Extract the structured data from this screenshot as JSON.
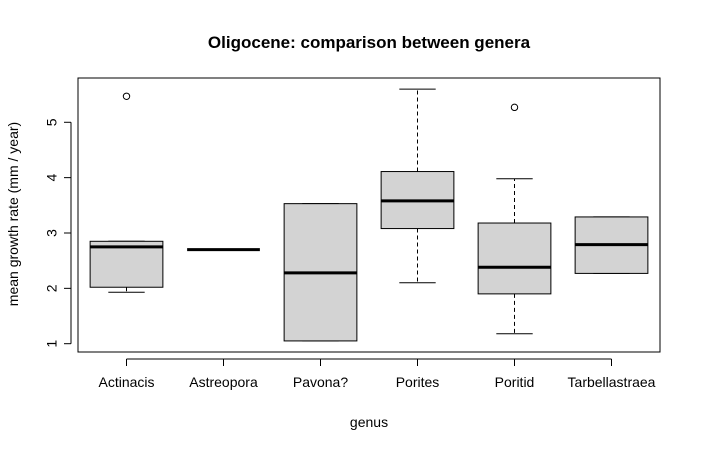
{
  "chart_data": {
    "type": "boxplot",
    "title": "Oligocene: comparison between genera",
    "xlabel": "genus",
    "ylabel": "mean growth rate (mm / year)",
    "ylim": [
      0.85,
      5.8
    ],
    "yticks": [
      1,
      2,
      3,
      4,
      5
    ],
    "box_color": "#d3d3d3",
    "categories": [
      "Actinacis",
      "Astreopora",
      "Pavona?",
      "Porites",
      "Poritid",
      "Tarbellastraea"
    ],
    "boxes": [
      {
        "name": "Actinacis",
        "whisker_low": 1.93,
        "q1": 2.02,
        "median": 2.75,
        "q3": 2.85,
        "whisker_high": 2.85,
        "outliers": [
          5.47
        ]
      },
      {
        "name": "Astreopora",
        "whisker_low": 2.7,
        "q1": 2.7,
        "median": 2.7,
        "q3": 2.7,
        "whisker_high": 2.7,
        "outliers": []
      },
      {
        "name": "Pavona?",
        "whisker_low": 1.05,
        "q1": 1.05,
        "median": 2.28,
        "q3": 3.53,
        "whisker_high": 3.53,
        "outliers": []
      },
      {
        "name": "Porites",
        "whisker_low": 2.1,
        "q1": 3.08,
        "median": 3.58,
        "q3": 4.11,
        "whisker_high": 5.6,
        "outliers": []
      },
      {
        "name": "Poritid",
        "whisker_low": 1.18,
        "q1": 1.9,
        "median": 2.38,
        "q3": 3.18,
        "whisker_high": 3.98,
        "outliers": [
          5.27
        ]
      },
      {
        "name": "Tarbellastraea",
        "whisker_low": 2.27,
        "q1": 2.27,
        "median": 2.79,
        "q3": 3.29,
        "whisker_high": 3.29,
        "outliers": []
      }
    ]
  }
}
